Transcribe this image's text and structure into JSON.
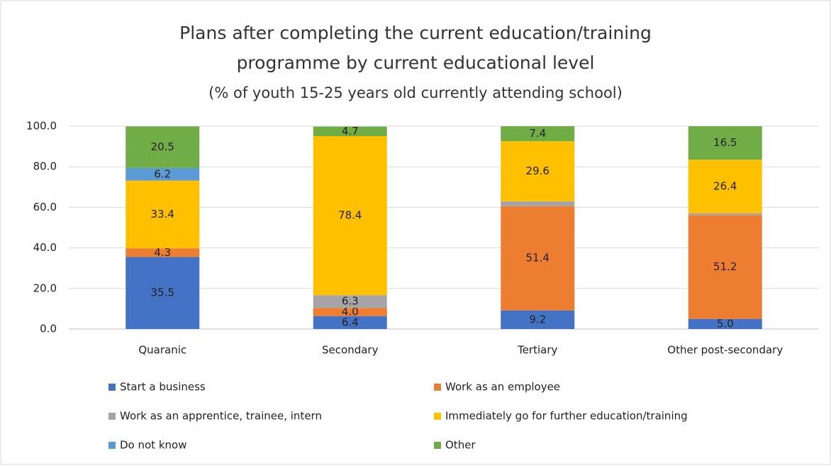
{
  "chart_data": {
    "type": "stacked_bar",
    "title": [
      "Plans after completing the current education/training",
      "programme by current educational level"
    ],
    "subtitle": "(% of youth 15-25 years old currently attending school)",
    "categories": [
      "Quaranic",
      "Secondary",
      "Tertiary",
      "Other post-secondary"
    ],
    "series": [
      {
        "name": "Start a business",
        "color": "#4472c4",
        "values": [
          35.5,
          6.4,
          9.2,
          5.0
        ],
        "value_labels": [
          "35.5",
          "6.4",
          "9.2",
          "5.0"
        ]
      },
      {
        "name": "Work as an employee",
        "color": "#ed7d31",
        "values": [
          4.3,
          4.0,
          51.4,
          51.2
        ],
        "value_labels": [
          "4.3",
          "4.0",
          "51.4",
          "51.2"
        ]
      },
      {
        "name": "Work as an apprentice, trainee, intern",
        "color": "#a5a5a5",
        "values": [
          0,
          6.3,
          2.4,
          0.9
        ],
        "value_labels": [
          null,
          "6.3",
          null,
          null
        ]
      },
      {
        "name": "Immediately go for further education/training",
        "color": "#ffc000",
        "values": [
          33.4,
          78.4,
          29.6,
          26.4
        ],
        "value_labels": [
          "33.4",
          "78.4",
          "29.6",
          "26.4"
        ]
      },
      {
        "name": "Do not know",
        "color": "#5b9bd5",
        "values": [
          6.2,
          0,
          0,
          0
        ],
        "value_labels": [
          "6.2",
          null,
          null,
          null
        ]
      },
      {
        "name": "Other",
        "color": "#70ad47",
        "values": [
          20.5,
          4.7,
          7.4,
          16.5
        ],
        "value_labels": [
          "20.5",
          "4.7",
          "7.4",
          "16.5"
        ]
      }
    ],
    "ylim": [
      0,
      100
    ],
    "yticks": [
      {
        "value": 0,
        "label": "0.0"
      },
      {
        "value": 20,
        "label": "20.0"
      },
      {
        "value": 40,
        "label": "40.0"
      },
      {
        "value": 60,
        "label": "60.0"
      },
      {
        "value": 80,
        "label": "80.0"
      },
      {
        "value": 100,
        "label": "100.0"
      }
    ],
    "grid": true
  }
}
